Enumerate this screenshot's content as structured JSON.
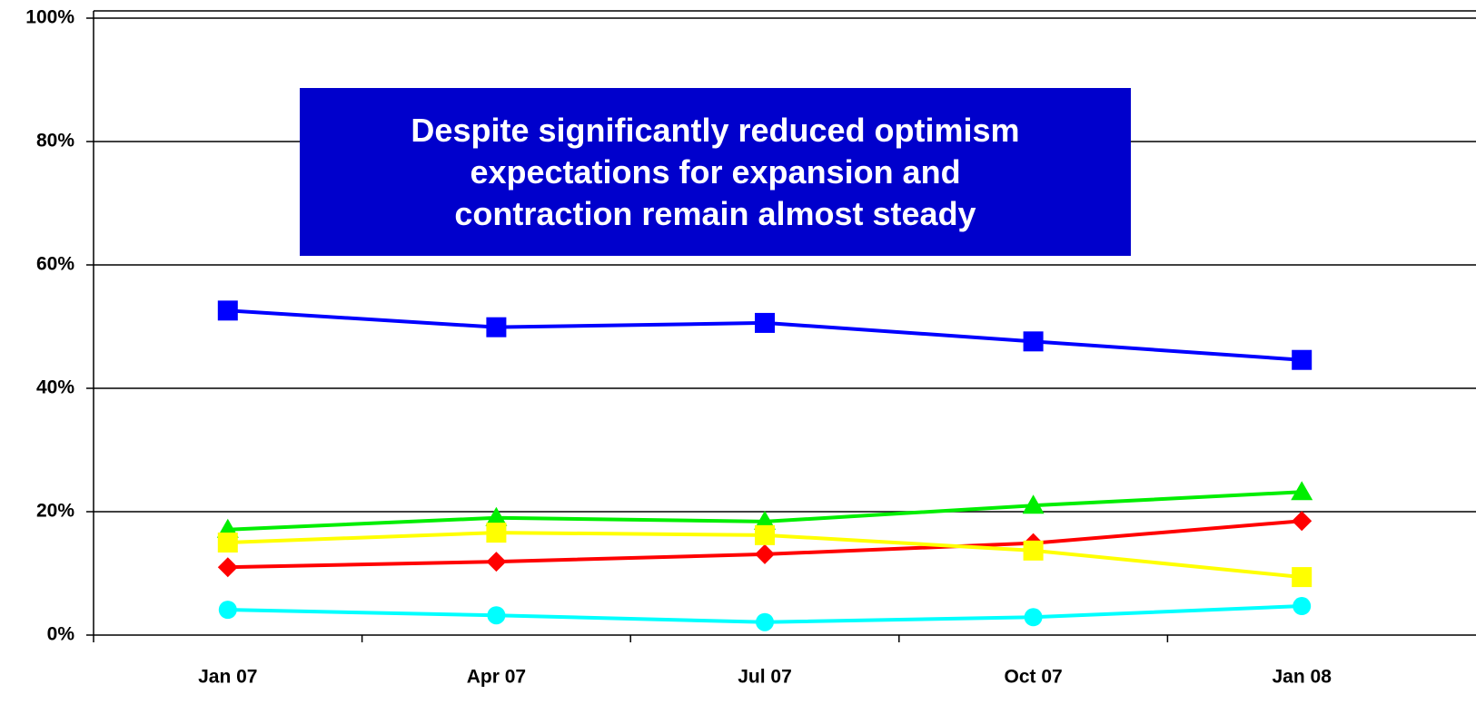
{
  "chart_data": {
    "type": "line",
    "annotation": [
      "Despite significantly reduced optimism",
      "expectations for expansion and",
      "contraction remain almost steady"
    ],
    "categories": [
      "Jan 07",
      "Apr 07",
      "Jul 07",
      "Oct 07",
      "Jan 08"
    ],
    "series": [
      {
        "color": "#0000ff",
        "marker": "square",
        "values": [
          52.6,
          49.9,
          50.6,
          47.6,
          44.6
        ]
      },
      {
        "color": "#00ee00",
        "marker": "triangle",
        "values": [
          17.1,
          19.0,
          18.4,
          21.0,
          23.2
        ]
      },
      {
        "color": "#ff0000",
        "marker": "diamond",
        "values": [
          11.0,
          11.9,
          13.1,
          14.9,
          18.5
        ]
      },
      {
        "color": "#ffff00",
        "marker": "square",
        "values": [
          15.0,
          16.6,
          16.2,
          13.7,
          9.4
        ]
      },
      {
        "color": "#00ffff",
        "marker": "circle",
        "values": [
          4.1,
          3.2,
          2.1,
          2.9,
          4.7
        ]
      }
    ],
    "ylim": [
      0,
      100
    ],
    "yticks": [
      {
        "value": 0,
        "label": "0%"
      },
      {
        "value": 20,
        "label": "20%"
      },
      {
        "value": 40,
        "label": "40%"
      },
      {
        "value": 60,
        "label": "60%"
      },
      {
        "value": 80,
        "label": "80%"
      },
      {
        "value": 100,
        "label": "100%"
      }
    ],
    "grid": true
  }
}
